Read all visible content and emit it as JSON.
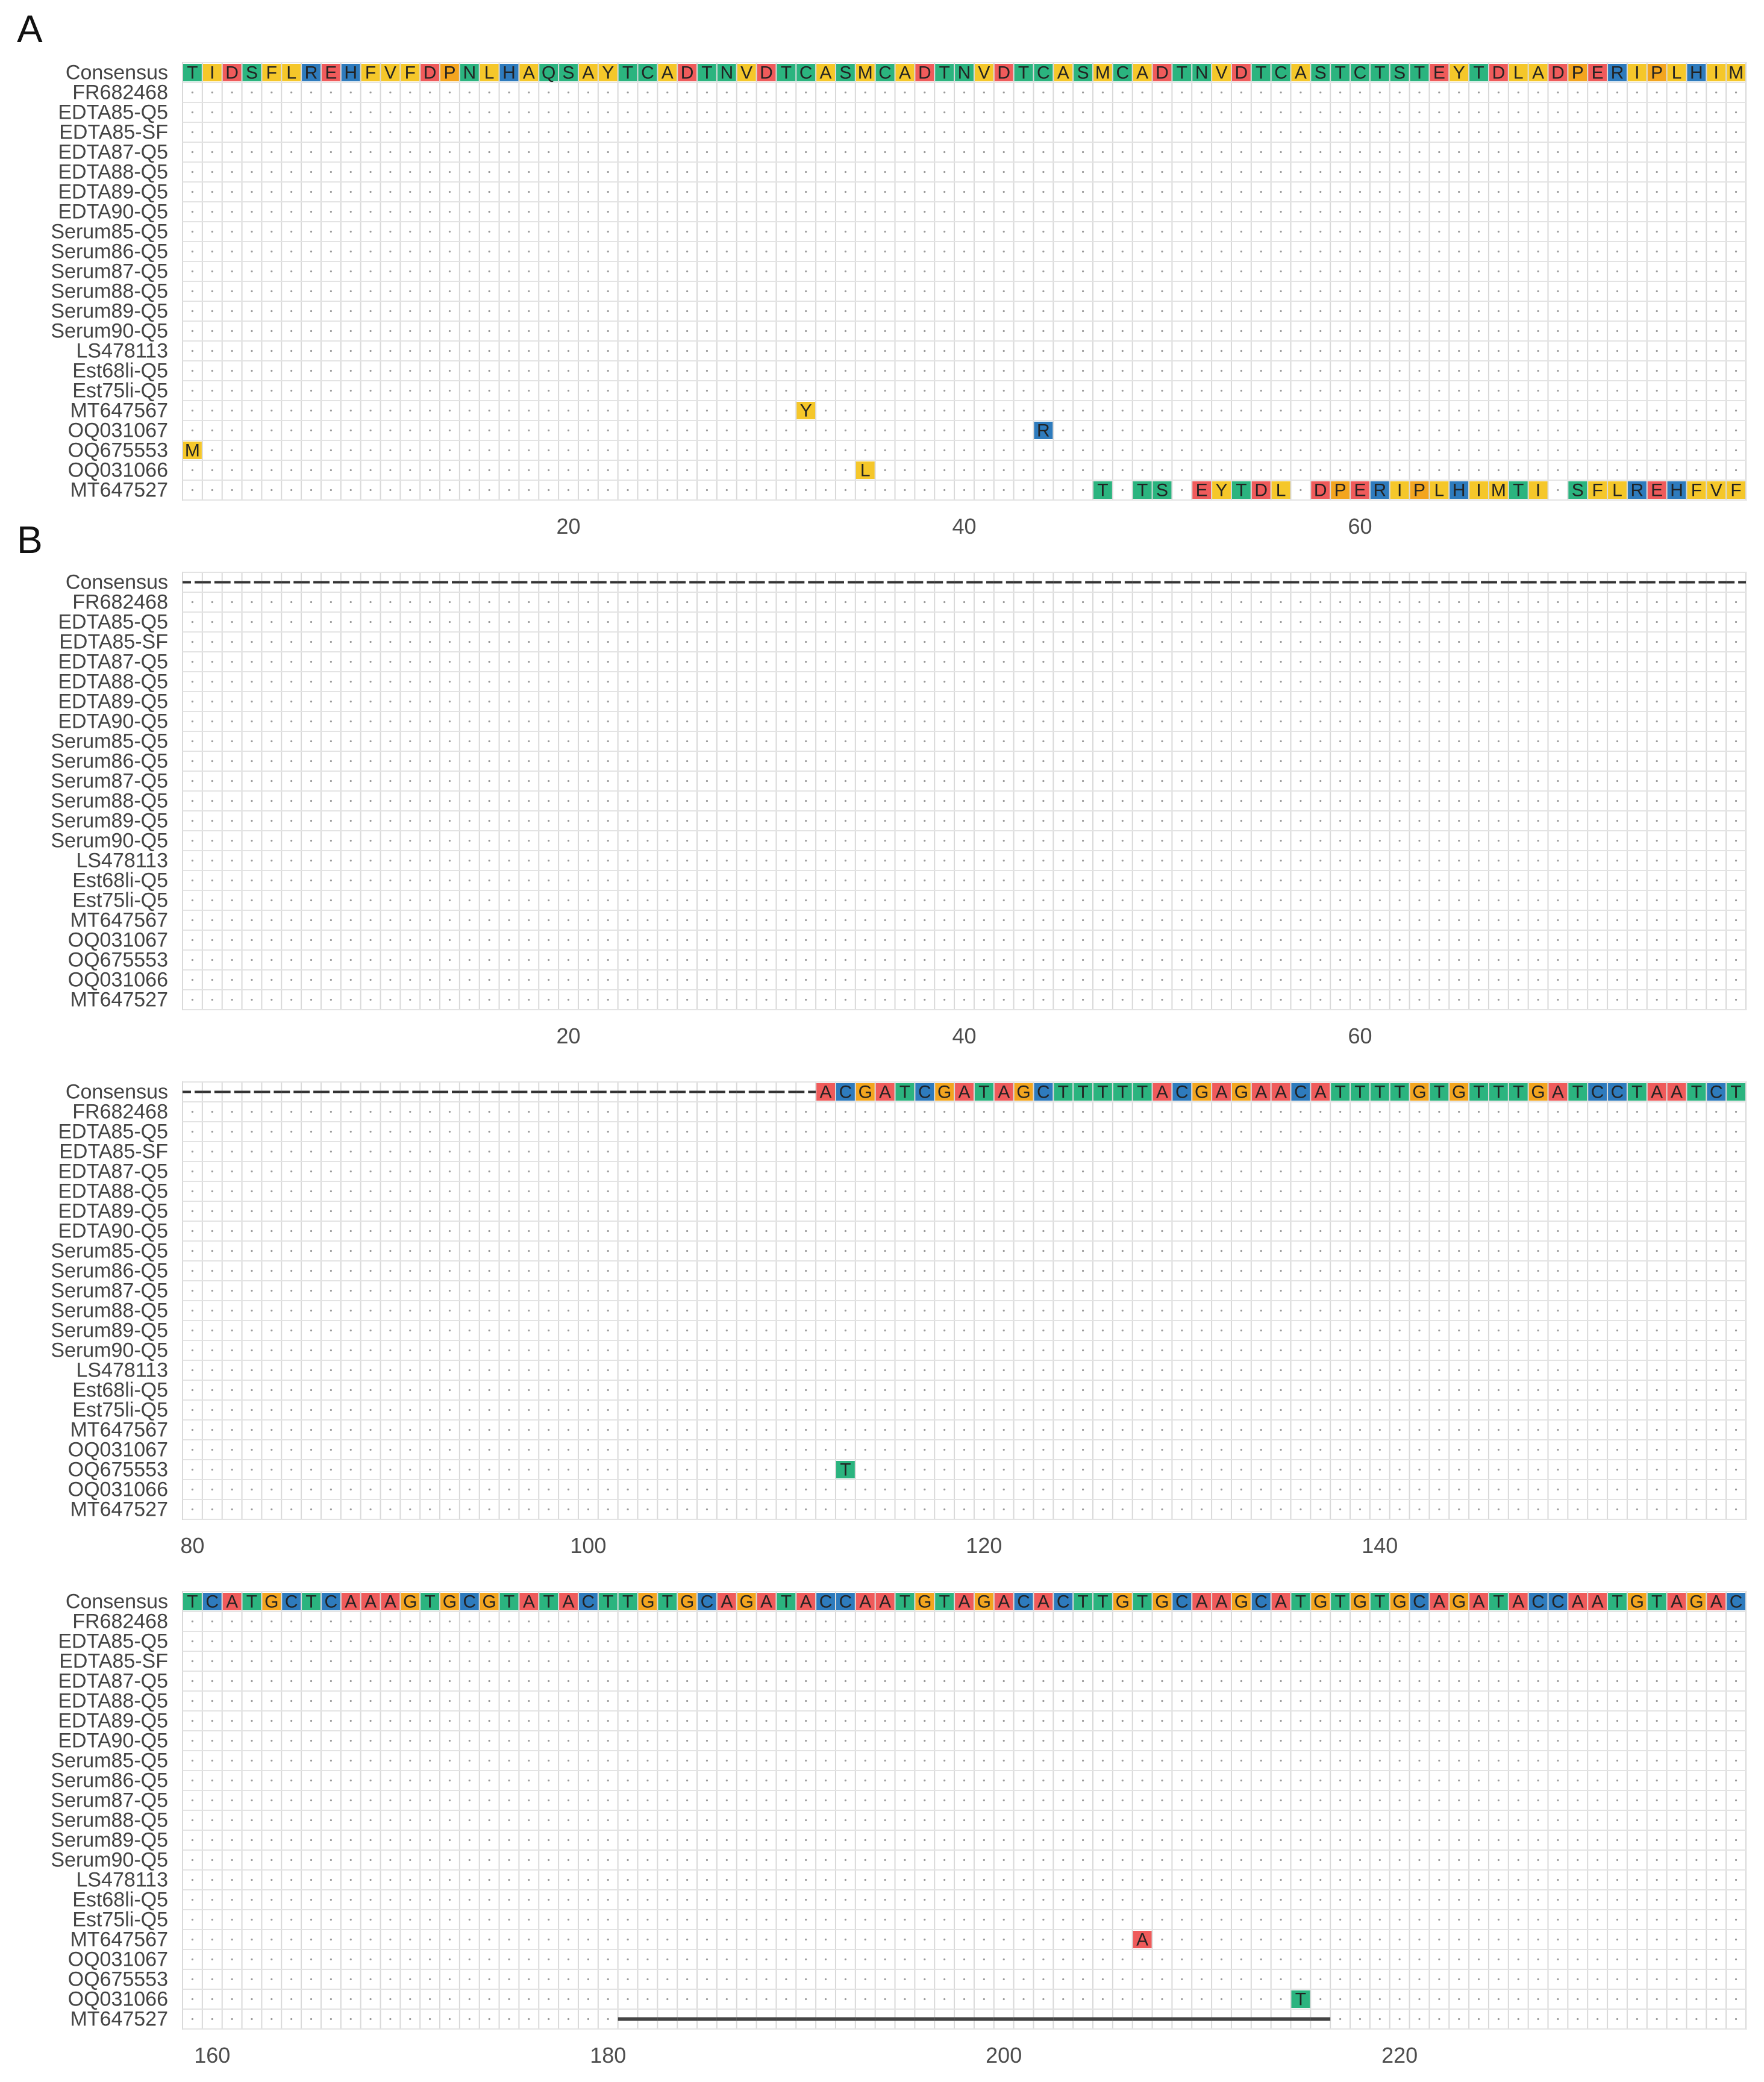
{
  "chart_data": [
    {
      "type": "table",
      "panel": "A",
      "alphabet": "protein",
      "x_start": 1,
      "x_end": 79,
      "xticks": [
        20,
        40,
        60
      ],
      "rows": [
        "Consensus",
        "FR682468",
        "EDTA85-Q5",
        "EDTA85-SF",
        "EDTA87-Q5",
        "EDTA88-Q5",
        "EDTA89-Q5",
        "EDTA90-Q5",
        "Serum85-Q5",
        "Serum86-Q5",
        "Serum87-Q5",
        "Serum88-Q5",
        "Serum89-Q5",
        "Serum90-Q5",
        "LS478113",
        "Est68li-Q5",
        "Est75li-Q5",
        "MT647567",
        "OQ031067",
        "OQ675553",
        "OQ031066",
        "MT647527"
      ],
      "consensus": "TIDSFLREHFVFDPNLHAQSAYTCADTNVDTCASMCADTNVDTCASMCADTNVDTCASTCTSTEYTDLADPERIPLHIM",
      "variants": [
        {
          "row": "MT647567",
          "pos": 32,
          "seq": "Y"
        },
        {
          "row": "OQ031067",
          "pos": 44,
          "seq": "R"
        },
        {
          "row": "OQ675553",
          "pos": 1,
          "seq": "M"
        },
        {
          "row": "OQ031066",
          "pos": 35,
          "seq": "L"
        },
        {
          "row": "MT647527",
          "pos": 47,
          "seq": "T.TS.EYTDL.DPERIPLHIMTI.SFLREHFVF"
        }
      ]
    },
    {
      "type": "table",
      "panel": "B",
      "alphabet": "nucleotide",
      "x_start": 1,
      "x_end": 79,
      "xticks": [
        20,
        40,
        60
      ],
      "rows": [
        "Consensus",
        "FR682468",
        "EDTA85-Q5",
        "EDTA85-SF",
        "EDTA87-Q5",
        "EDTA88-Q5",
        "EDTA89-Q5",
        "EDTA90-Q5",
        "Serum85-Q5",
        "Serum86-Q5",
        "Serum87-Q5",
        "Serum88-Q5",
        "Serum89-Q5",
        "Serum90-Q5",
        "LS478113",
        "Est68li-Q5",
        "Est75li-Q5",
        "MT647567",
        "OQ031067",
        "OQ675553",
        "OQ031066",
        "MT647527"
      ],
      "consensus": "-------------------------------------------------------------------------------",
      "variants": []
    },
    {
      "type": "table",
      "panel": "B",
      "alphabet": "nucleotide",
      "x_start": 80,
      "x_end": 158,
      "xticks": [
        80,
        100,
        120,
        140
      ],
      "rows": [
        "Consensus",
        "FR682468",
        "EDTA85-Q5",
        "EDTA85-SF",
        "EDTA87-Q5",
        "EDTA88-Q5",
        "EDTA89-Q5",
        "EDTA90-Q5",
        "Serum85-Q5",
        "Serum86-Q5",
        "Serum87-Q5",
        "Serum88-Q5",
        "Serum89-Q5",
        "Serum90-Q5",
        "LS478113",
        "Est68li-Q5",
        "Est75li-Q5",
        "MT647567",
        "OQ031067",
        "OQ675553",
        "OQ031066",
        "MT647527"
      ],
      "consensus": "--------------------------------ACGATCGATAGCTTTTTACGAGAACATTTTGTGTTTGATCCTAATCT",
      "variants": [
        {
          "row": "OQ675553",
          "pos": 113,
          "seq": "T"
        }
      ]
    },
    {
      "type": "table",
      "panel": "B",
      "alphabet": "nucleotide",
      "x_start": 159,
      "x_end": 237,
      "xticks": [
        160,
        180,
        200,
        220
      ],
      "rows": [
        "Consensus",
        "FR682468",
        "EDTA85-Q5",
        "EDTA85-SF",
        "EDTA87-Q5",
        "EDTA88-Q5",
        "EDTA89-Q5",
        "EDTA90-Q5",
        "Serum85-Q5",
        "Serum86-Q5",
        "Serum87-Q5",
        "Serum88-Q5",
        "Serum89-Q5",
        "Serum90-Q5",
        "LS478113",
        "Est68li-Q5",
        "Est75li-Q5",
        "MT647567",
        "OQ031067",
        "OQ675553",
        "OQ031066",
        "MT647527"
      ],
      "consensus": "TCATGCTCAAAGTGCGTATACTTGTGCAGATACCAATGTAGACACTTGTGCAAGCATGTGTGCAGATACCAATGTAGAC",
      "variants": [
        {
          "row": "MT647567",
          "pos": 207,
          "seq": "A"
        },
        {
          "row": "OQ031066",
          "pos": 215,
          "seq": "T"
        },
        {
          "row": "MT647527",
          "pos": 181,
          "seq": "------------------------------------"
        }
      ]
    }
  ],
  "colors": {
    "hydrophobic_yellow": "#f5c72a",
    "polar_green": "#2bb47f",
    "negative_red": "#ef5b5b",
    "positive_blue": "#2e7bbd",
    "special_orange": "#f3a51f",
    "nt_A": "#ef5b5b",
    "nt_C": "#2e7bbd",
    "nt_G": "#f3a51f",
    "nt_T": "#2bb47f"
  }
}
